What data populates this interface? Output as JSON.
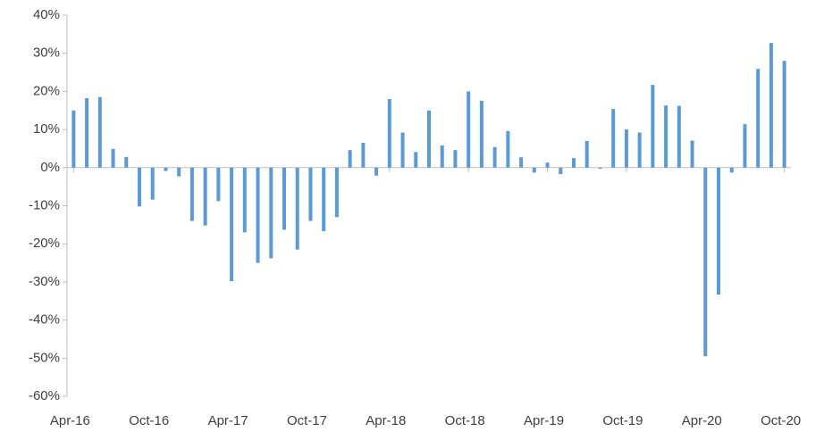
{
  "chart_data": {
    "type": "bar",
    "color": "#5b9bd5",
    "categories": [
      "Apr-16",
      null,
      null,
      null,
      null,
      null,
      "Oct-16",
      null,
      null,
      null,
      null,
      null,
      "Apr-17",
      null,
      null,
      null,
      null,
      null,
      "Oct-17",
      null,
      null,
      null,
      null,
      null,
      "Apr-18",
      null,
      null,
      null,
      null,
      null,
      "Oct-18",
      null,
      null,
      null,
      null,
      null,
      "Apr-19",
      null,
      null,
      null,
      null,
      null,
      "Oct-19",
      null,
      null,
      null,
      null,
      null,
      "Apr-20",
      null,
      null,
      null,
      null,
      null,
      "Oct-20"
    ],
    "values": [
      15,
      18.2,
      18.5,
      4.9,
      2.8,
      -10.2,
      -8.4,
      -0.9,
      -2.3,
      -14,
      -15.2,
      -8.8,
      -29.8,
      -17,
      -25,
      -23.8,
      -16.3,
      -21.5,
      -14,
      -16.7,
      -13,
      4.6,
      6.5,
      -2.1,
      18,
      9.2,
      4.1,
      15,
      5.8,
      4.6,
      20,
      17.5,
      5.4,
      9.6,
      2.7,
      -1.3,
      1.3,
      -1.7,
      2.5,
      7,
      -0.3,
      15.4,
      10,
      9.2,
      21.7,
      16.3,
      16.2,
      7.1,
      -49.5,
      -33.3,
      -1.3,
      11.4,
      25.9,
      32.7,
      28
    ],
    "ylim": [
      -60,
      40
    ],
    "yticks": [
      {
        "value": -60,
        "label": "-60%"
      },
      {
        "value": -50,
        "label": "-50%"
      },
      {
        "value": -40,
        "label": "-40%"
      },
      {
        "value": -30,
        "label": "-30%"
      },
      {
        "value": -20,
        "label": "-20%"
      },
      {
        "value": -10,
        "label": "-10%"
      },
      {
        "value": 0,
        "label": "0%"
      },
      {
        "value": 10,
        "label": "10%"
      },
      {
        "value": 20,
        "label": "20%"
      },
      {
        "value": 30,
        "label": "30%"
      },
      {
        "value": 40,
        "label": "40%"
      }
    ]
  }
}
